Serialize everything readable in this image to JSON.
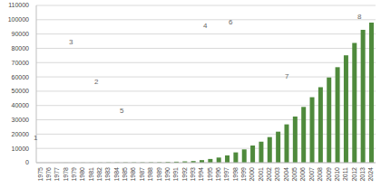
{
  "chart_data": {
    "type": "bar",
    "categories": [
      "1975",
      "1976",
      "1977",
      "1978",
      "1979",
      "1980",
      "1981",
      "1982",
      "1983",
      "1984",
      "1985",
      "1986",
      "1987",
      "1988",
      "1989",
      "1990",
      "1991",
      "1992",
      "1993",
      "1994",
      "1995",
      "1996",
      "1997",
      "1998",
      "1999",
      "2000",
      "2001",
      "2002",
      "2003",
      "2004",
      "2005",
      "2006",
      "2007",
      "2008",
      "2009",
      "2010",
      "2011",
      "2012",
      "2013",
      "2024"
    ],
    "values": [
      13,
      13,
      23,
      36,
      47,
      69,
      80,
      106,
      155,
      175,
      200,
      221,
      244,
      274,
      329,
      500,
      710,
      919,
      1146,
      1800,
      2600,
      3600,
      5100,
      7200,
      9300,
      12000,
      14700,
      17900,
      21700,
      26800,
      32300,
      39000,
      45800,
      52800,
      59600,
      66800,
      75100,
      83800,
      93000,
      98000
    ],
    "color": "#4f8a3c",
    "ylim": [
      0,
      110000
    ],
    "yticks": [
      0,
      10000,
      20000,
      30000,
      40000,
      50000,
      60000,
      70000,
      80000,
      90000,
      100000,
      110000
    ],
    "grid": true,
    "annotations": [
      "1",
      "2",
      "3",
      "4",
      "5",
      "6",
      "7",
      "8"
    ]
  }
}
